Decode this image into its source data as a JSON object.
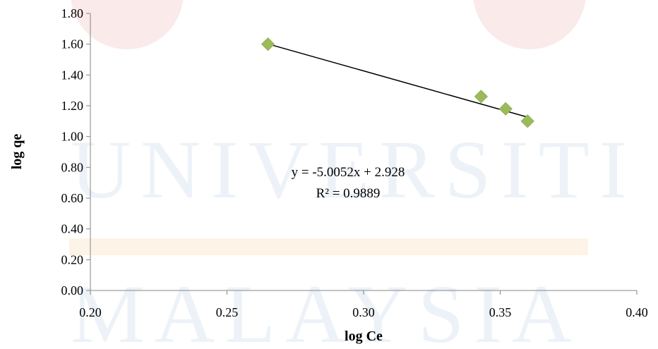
{
  "chart_data": {
    "type": "scatter",
    "title": "",
    "xlabel": "log Ce",
    "ylabel": "log qe",
    "xlim": [
      0.2,
      0.4
    ],
    "ylim": [
      0.0,
      1.8
    ],
    "x_ticks": [
      "0.20",
      "0.25",
      "0.30",
      "0.35",
      "0.40"
    ],
    "y_ticks": [
      "0.00",
      "0.20",
      "0.40",
      "0.60",
      "0.80",
      "1.00",
      "1.20",
      "1.40",
      "1.60",
      "1.80"
    ],
    "grid": false,
    "legend": "none",
    "series": [
      {
        "color": "#9bbb59",
        "marker": "diamond",
        "points": [
          {
            "x": 0.265,
            "y": 1.6
          },
          {
            "x": 0.343,
            "y": 1.26
          },
          {
            "x": 0.352,
            "y": 1.18
          },
          {
            "x": 0.36,
            "y": 1.1
          }
        ]
      }
    ],
    "trendline": {
      "type": "linear",
      "slope": -5.0052,
      "intercept": 2.928,
      "x_range": [
        0.265,
        0.361
      ],
      "equation": "y = -5.0052x + 2.928",
      "r_squared": "R² = 0.9889",
      "color": "#000000"
    },
    "watermark": [
      "UNIVERSITI",
      "MALAYSIA"
    ]
  }
}
